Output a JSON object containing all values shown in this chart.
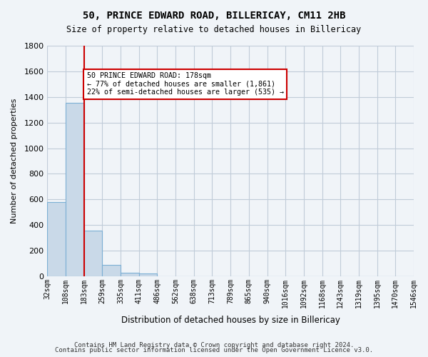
{
  "title_line1": "50, PRINCE EDWARD ROAD, BILLERICAY, CM11 2HB",
  "title_line2": "Size of property relative to detached houses in Billericay",
  "xlabel": "Distribution of detached houses by size in Billericay",
  "ylabel": "Number of detached properties",
  "bin_labels": [
    "32sqm",
    "108sqm",
    "183sqm",
    "259sqm",
    "335sqm",
    "411sqm",
    "486sqm",
    "562sqm",
    "638sqm",
    "713sqm",
    "789sqm",
    "865sqm",
    "940sqm",
    "1016sqm",
    "1092sqm",
    "1168sqm",
    "1243sqm",
    "1319sqm",
    "1395sqm",
    "1470sqm",
    "1546sqm"
  ],
  "bar_values": [
    580,
    1355,
    355,
    90,
    30,
    20,
    0,
    0,
    0,
    0,
    0,
    0,
    0,
    0,
    0,
    0,
    0,
    0,
    0,
    0
  ],
  "bar_color": "#c9d9e8",
  "bar_edge_color": "#7bafd4",
  "red_line_x": 2.0,
  "red_line_color": "#cc0000",
  "annotation_text": "50 PRINCE EDWARD ROAD: 178sqm\n← 77% of detached houses are smaller (1,861)\n22% of semi-detached houses are larger (535) →",
  "annotation_box_color": "#ffffff",
  "annotation_box_edge": "#cc0000",
  "ylim": [
    0,
    1800
  ],
  "yticks": [
    0,
    200,
    400,
    600,
    800,
    1000,
    1200,
    1400,
    1600,
    1800
  ],
  "footer_line1": "Contains HM Land Registry data © Crown copyright and database right 2024.",
  "footer_line2": "Contains public sector information licensed under the Open Government Licence v3.0.",
  "background_color": "#f0f4f8",
  "grid_color": "#c0ccd8",
  "figsize": [
    6.0,
    5.0
  ],
  "dpi": 100
}
